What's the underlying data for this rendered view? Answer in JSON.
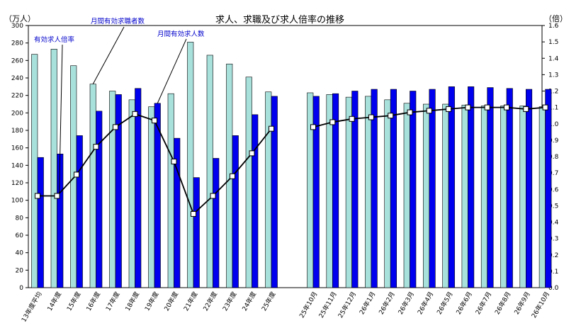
{
  "chart_data": {
    "type": "bar",
    "title": "求人、求職及び求人倍率の推移",
    "left_unit": "（万人）",
    "right_unit": "（倍）",
    "left_ticks": [
      "0",
      "20",
      "40",
      "60",
      "80",
      "100",
      "120",
      "140",
      "160",
      "180",
      "200",
      "220",
      "240",
      "260",
      "280",
      "300"
    ],
    "right_ticks": [
      "0.0",
      "0.1",
      "0.2",
      "0.3",
      "0.4",
      "0.5",
      "0.6",
      "0.7",
      "0.8",
      "0.9",
      "1.0",
      "1.1",
      "1.2",
      "1.3",
      "1.4",
      "1.5",
      "1.6"
    ],
    "ylim_left": [
      0,
      300
    ],
    "ylim_right": [
      0,
      1.6
    ],
    "categories": [
      "13年度平均",
      "14年度",
      "15年度",
      "16年度",
      "17年度",
      "18年度",
      "19年度",
      "20年度",
      "21年度",
      "22年度",
      "23年度",
      "24年度",
      "25年度",
      "25年10月",
      "25年11月",
      "25年12月",
      "26年1月",
      "26年2月",
      "26年3月",
      "26年4月",
      "26年5月",
      "26年6月",
      "26年7月",
      "26年8月",
      "26年9月",
      "26年10月"
    ],
    "series": [
      {
        "name": "月間有効求職者数",
        "kind": "bar",
        "axis": "left",
        "color": "#a8e0dc",
        "values": [
          267,
          273,
          254,
          233,
          225,
          215,
          207,
          222,
          281,
          266,
          256,
          241,
          224,
          223,
          221,
          218,
          219,
          215,
          211,
          210,
          210,
          209,
          208,
          208,
          208,
          207
        ]
      },
      {
        "name": "月間有効求人数",
        "kind": "bar",
        "axis": "left",
        "color": "#0000ee",
        "values": [
          149,
          153,
          174,
          202,
          221,
          228,
          211,
          171,
          126,
          148,
          174,
          198,
          219,
          219,
          222,
          225,
          227,
          227,
          225,
          227,
          230,
          230,
          229,
          228,
          227,
          227
        ]
      },
      {
        "name": "有効求人倍率",
        "kind": "line",
        "axis": "right",
        "color": "#000000",
        "values": [
          0.56,
          0.56,
          0.69,
          0.86,
          0.98,
          1.06,
          1.02,
          0.77,
          0.45,
          0.56,
          0.68,
          0.82,
          0.97,
          0.98,
          1.01,
          1.03,
          1.04,
          1.05,
          1.07,
          1.08,
          1.09,
          1.1,
          1.1,
          1.1,
          1.09,
          1.1
        ]
      }
    ]
  }
}
